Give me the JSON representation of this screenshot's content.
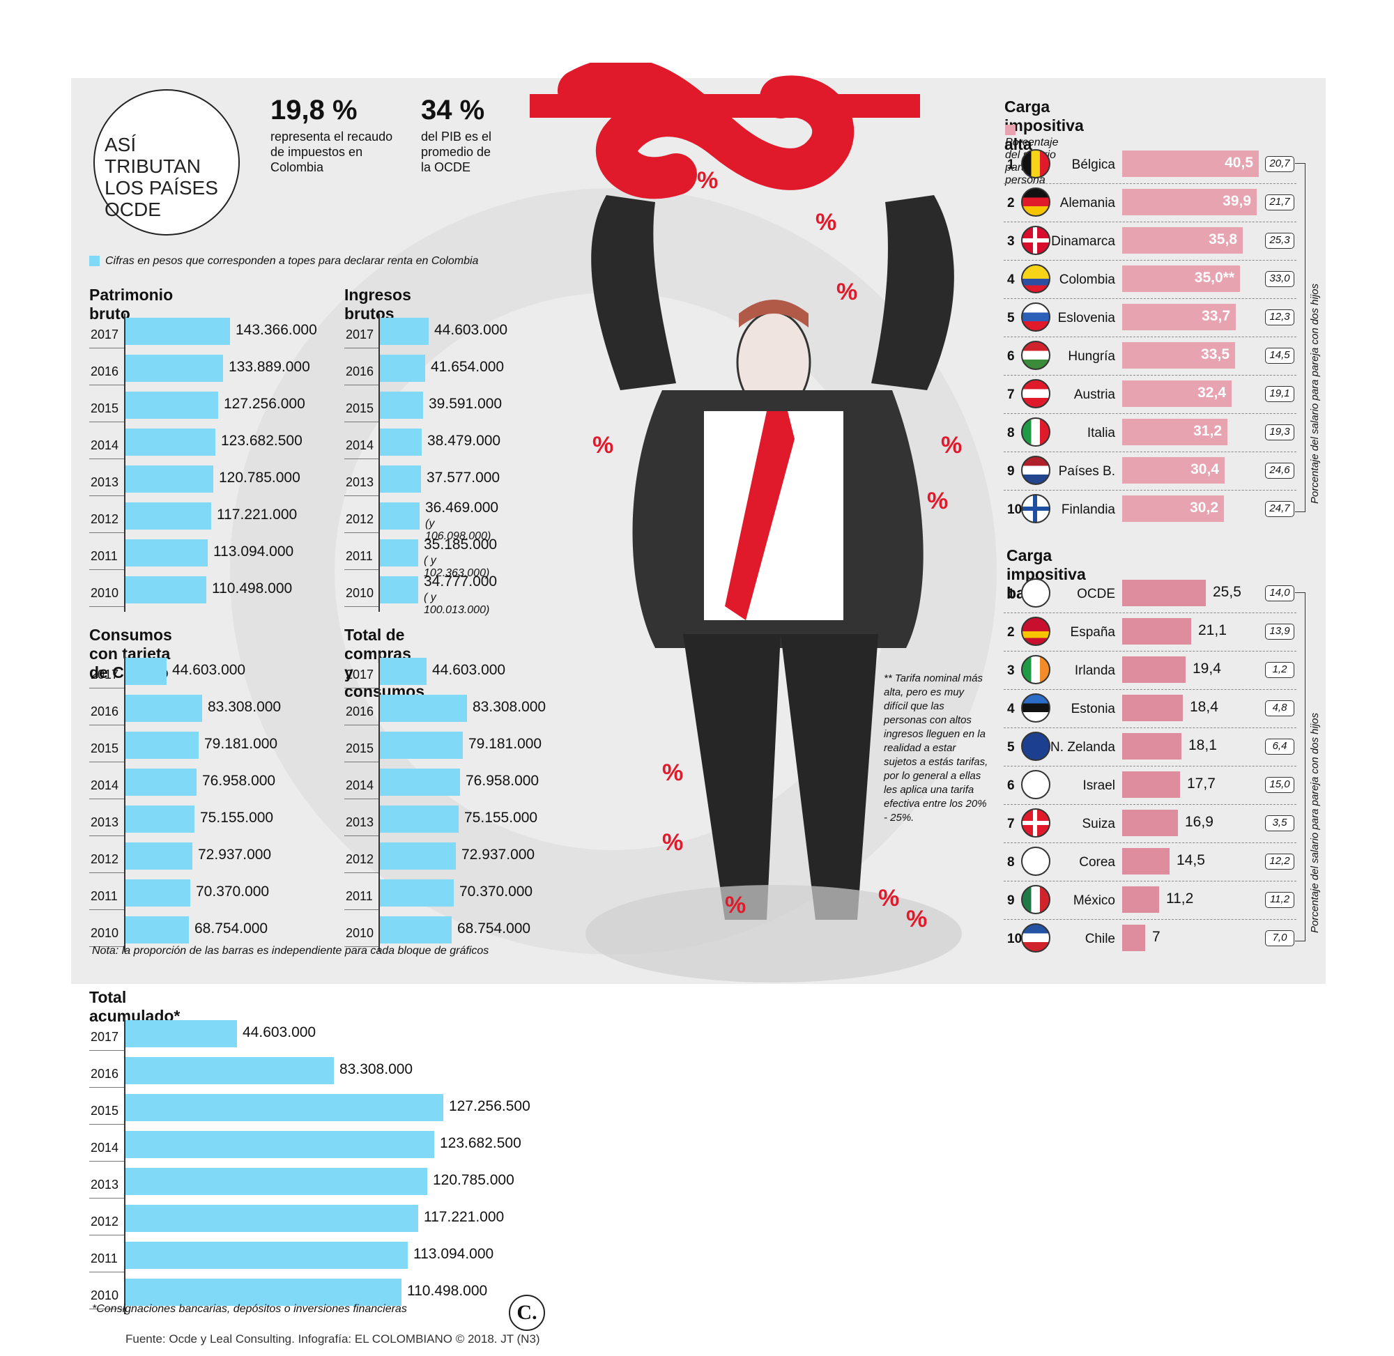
{
  "title": "ASÍ TRIBUTAN LOS PAÍSES OCDE",
  "stats": [
    {
      "value": "19,8 %",
      "text": "representa el recaudo de impuestos en Colombia"
    },
    {
      "value": "34 %",
      "text": "del PIB es el promedio de la OCDE"
    }
  ],
  "legend_blue": "Cifras en pesos que corresponden a topes para declarar renta en Colombia",
  "colors": {
    "blue": "#7fd9f7",
    "pink": "#e8a3b0",
    "pink_dark": "#dd8d9d",
    "red": "#e11a2b"
  },
  "chart_data": [
    {
      "type": "bar",
      "title": "Patrimonio bruto",
      "categories": [
        "2017",
        "2016",
        "2015",
        "2014",
        "2013",
        "2012",
        "2011",
        "2010"
      ],
      "values": [
        143366000,
        133889000,
        127256000,
        123682500,
        120785000,
        117221000,
        113094000,
        110498000
      ],
      "labels": [
        "143.366.000",
        "133.889.000",
        "127.256.000",
        "123.682.500",
        "120.785.000",
        "117.221.000",
        "113.094.000",
        "110.498.000"
      ]
    },
    {
      "type": "bar",
      "title": "Ingresos brutos",
      "categories": [
        "2017",
        "2016",
        "2015",
        "2014",
        "2013",
        "2012",
        "2011",
        "2010"
      ],
      "values": [
        44603000,
        41654000,
        39591000,
        38479000,
        37577000,
        36469000,
        35185000,
        34777000
      ],
      "labels": [
        "44.603.000",
        "41.654.000",
        "39.591.000",
        "38.479.000",
        "37.577.000",
        "36.469.000",
        "35.185.000",
        "34.777.000"
      ],
      "sublabels": [
        "",
        "",
        "",
        "",
        "",
        "(y 106.098.000)",
        "( y 102.363.000)",
        "( y 100.013.000)"
      ]
    },
    {
      "type": "bar",
      "title": "Consumos con tarjeta de Crédito",
      "categories": [
        "2017",
        "2016",
        "2015",
        "2014",
        "2013",
        "2012",
        "2011",
        "2010"
      ],
      "values": [
        44603000,
        83308000,
        79181000,
        76958000,
        75155000,
        72937000,
        70370000,
        68754000
      ],
      "labels": [
        "44.603.000",
        "83.308.000",
        "79.181.000",
        "76.958.000",
        "75.155.000",
        "72.937.000",
        "70.370.000",
        "68.754.000"
      ]
    },
    {
      "type": "bar",
      "title": "Total de compras y consumos",
      "categories": [
        "2017",
        "2016",
        "2015",
        "2014",
        "2013",
        "2012",
        "2011",
        "2010"
      ],
      "values": [
        44603000,
        83308000,
        79181000,
        76958000,
        75155000,
        72937000,
        70370000,
        68754000
      ],
      "labels": [
        "44.603.000",
        "83.308.000",
        "79.181.000",
        "76.958.000",
        "75.155.000",
        "72.937.000",
        "70.370.000",
        "68.754.000"
      ]
    },
    {
      "type": "bar",
      "title": "Total acumulado*",
      "categories": [
        "2017",
        "2016",
        "2015",
        "2014",
        "2013",
        "2012",
        "2011",
        "2010"
      ],
      "values": [
        44603000,
        83308000,
        127256500,
        123682500,
        120785000,
        117221000,
        113094000,
        110498000
      ],
      "labels": [
        "44.603.000",
        "83.308.000",
        "127.256.500",
        "123.682.500",
        "120.785.000",
        "117.221.000",
        "113.094.000",
        "110.498.000"
      ]
    },
    {
      "type": "bar",
      "title": "Carga impositiva alta",
      "subtitle": "Porcentaje del salario para una persona",
      "side_label": "Porcentaje del salario para pareja con dos hijos",
      "ranks": [
        "1",
        "2",
        "3",
        "4",
        "5",
        "6",
        "7",
        "8",
        "9",
        "10"
      ],
      "categories": [
        "Bélgica",
        "Alemania",
        "Dinamarca",
        "Colombia",
        "Eslovenia",
        "Hungría",
        "Austria",
        "Italia",
        "Países B.",
        "Finlandia"
      ],
      "values": [
        40.5,
        39.9,
        35.8,
        35.0,
        33.7,
        33.5,
        32.4,
        31.2,
        30.4,
        30.2
      ],
      "labels": [
        "40,5",
        "39,9",
        "35,8",
        "35,0**",
        "33,7",
        "33,5",
        "32,4",
        "31,2",
        "30,4",
        "30,2"
      ],
      "couple": [
        "20,7",
        "21,7",
        "25,3",
        "33,0",
        "12,3",
        "14,5",
        "19,1",
        "19,3",
        "24,6",
        "24,7"
      ]
    },
    {
      "type": "bar",
      "title": "Carga impositiva baja",
      "side_label": "Porcentaje del salario para pareja con dos hijos",
      "ranks": [
        "1",
        "2",
        "3",
        "4",
        "5",
        "6",
        "7",
        "8",
        "9",
        "10"
      ],
      "categories": [
        "OCDE",
        "España",
        "Irlanda",
        "Estonia",
        "N. Zelanda",
        "Israel",
        "Suiza",
        "Corea",
        "México",
        "Chile"
      ],
      "values": [
        25.5,
        21.1,
        19.4,
        18.4,
        18.1,
        17.7,
        16.9,
        14.5,
        11.2,
        7
      ],
      "labels": [
        "25,5",
        "21,1",
        "19,4",
        "18,4",
        "18,1",
        "17,7",
        "16,9",
        "14,5",
        "11,2",
        "7"
      ],
      "couple": [
        "14,0",
        "13,9",
        "1,2",
        "4,8",
        "6,4",
        "15,0",
        "3,5",
        "12,2",
        "11,2",
        "7,0"
      ]
    }
  ],
  "note_bars": "Nota: la proporción de las barras es independiente para cada bloque de gráficos",
  "note_acum": "*Consignaciones bancarias, depósitos o inversiones financieras",
  "note_tarifa": "** Tarifa nominal más alta, pero es muy difícil que las personas con altos ingresos lleguen en la realidad a estar sujetos a estás tarifas, por lo general a ellas les aplica una tarifa efectiva entre los 20% - 25%.",
  "source": "Fuente: Ocde y Leal Consulting. Infografía: EL COLOMBIANO © 2018. JT (N3)",
  "logo_letter": "C."
}
